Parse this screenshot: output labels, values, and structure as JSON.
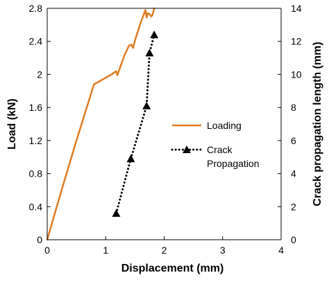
{
  "chart_data": {
    "type": "line",
    "xlabel": "Displacement (mm)",
    "ylabel": "Load (kN)",
    "y2label": "Crack propagation length (mm)",
    "xlim": [
      0,
      4
    ],
    "ylim": [
      0,
      2.8
    ],
    "y2lim": [
      0,
      14
    ],
    "x_ticks": [
      0,
      1,
      2,
      3,
      4
    ],
    "y_ticks": [
      0,
      0.4,
      0.8,
      1.2,
      1.6,
      2,
      2.4,
      2.8
    ],
    "y_tick_labels": [
      "0",
      "0.4",
      "0.8",
      "1.2",
      "1.6",
      "2",
      "2.4",
      "2.8"
    ],
    "y2_ticks": [
      0,
      2,
      4,
      6,
      8,
      10,
      12,
      14
    ],
    "grid": false,
    "legend_position": "right",
    "series": [
      {
        "name": "Loading",
        "axis": "left",
        "color": "#E07B22",
        "style": "solid",
        "x": [
          0,
          0.2,
          0.5,
          0.8,
          1.1,
          1.18,
          1.2,
          1.26,
          1.32,
          1.4,
          1.44,
          1.47,
          1.5,
          1.6,
          1.68,
          1.7,
          1.72,
          1.75,
          1.78,
          1.8,
          1.83
        ],
        "y": [
          0,
          0.49,
          1.2,
          1.88,
          2.0,
          2.04,
          1.99,
          2.11,
          2.23,
          2.35,
          2.36,
          2.32,
          2.41,
          2.63,
          2.78,
          2.69,
          2.74,
          2.73,
          2.7,
          2.72,
          2.8
        ]
      },
      {
        "name": "Crack Propagation",
        "axis": "right",
        "color": "#000000",
        "style": "dotted",
        "marker": "triangle",
        "x": [
          1.18,
          1.43,
          1.7,
          1.75,
          1.83
        ],
        "y": [
          1.6,
          4.9,
          8.1,
          11.3,
          12.4
        ]
      }
    ]
  }
}
